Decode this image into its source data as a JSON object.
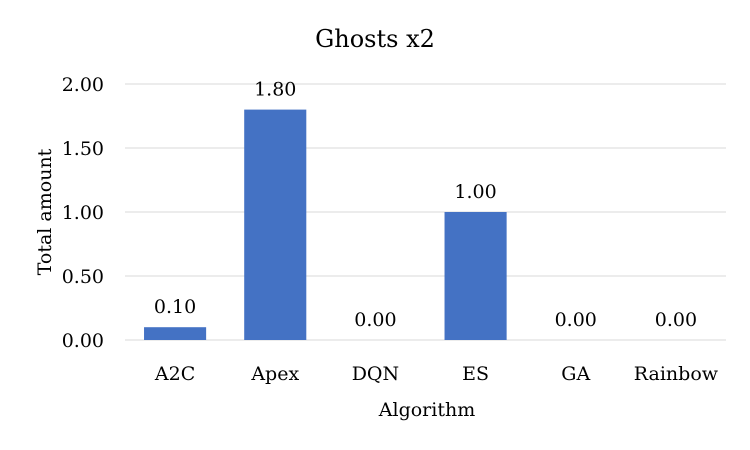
{
  "chart_data": {
    "type": "bar",
    "title": "Ghosts x2",
    "xlabel": "Algorithm",
    "ylabel": "Total amount",
    "categories": [
      "A2C",
      "Apex",
      "DQN",
      "ES",
      "GA",
      "Rainbow"
    ],
    "values": [
      0.1,
      1.8,
      0.0,
      1.0,
      0.0,
      0.0
    ],
    "data_labels": [
      "0.10",
      "1.80",
      "0.00",
      "1.00",
      "0.00",
      "0.00"
    ],
    "ylim": [
      0,
      2
    ],
    "yticks": [
      0,
      0.5,
      1,
      1.5,
      2
    ],
    "ytick_labels": [
      "0.00",
      "0.50",
      "1.00",
      "1.50",
      "2.00"
    ],
    "grid": true,
    "legend": "none",
    "bar_color": "#4472c4",
    "grid_color": "#d9d9d9"
  }
}
